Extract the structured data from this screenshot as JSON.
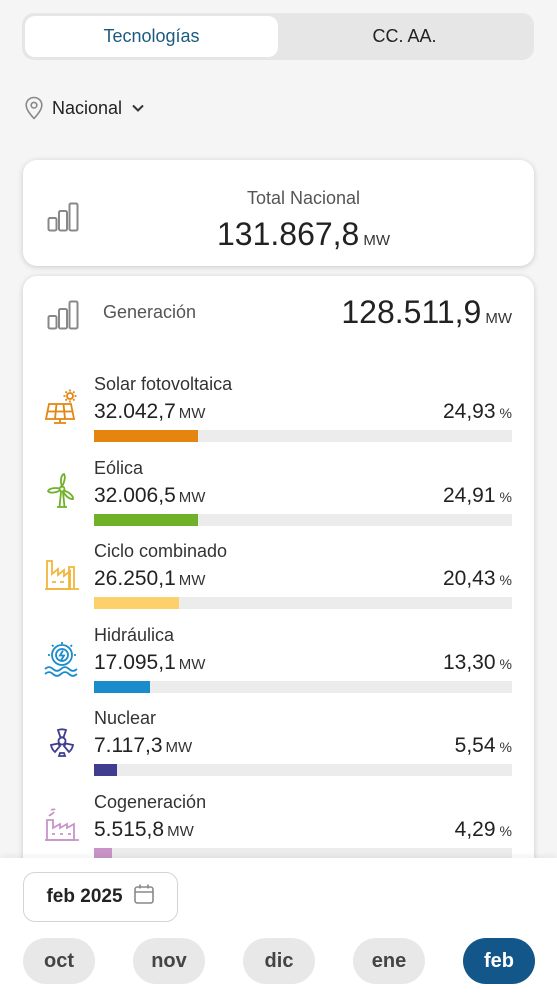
{
  "tabs": [
    {
      "label": "Tecnologías",
      "active": true
    },
    {
      "label": "CC. AA.",
      "active": false
    }
  ],
  "location": {
    "label": "Nacional",
    "icon": "location-pin-icon"
  },
  "total": {
    "label": "Total Nacional",
    "value": "131.867,8",
    "unit": "MW"
  },
  "generation": {
    "label": "Generación",
    "value": "128.511,9",
    "unit": "MW",
    "technologies": [
      {
        "name": "Solar fotovoltaica",
        "value": "32.042,7",
        "unit": "MW",
        "percent": "24,93",
        "pct_unit": "%",
        "share": 0.2493,
        "color": "#e5850f",
        "icon": "solar-panel-icon"
      },
      {
        "name": "Eólica",
        "value": "32.006,5",
        "unit": "MW",
        "percent": "24,91",
        "pct_unit": "%",
        "share": 0.2491,
        "color": "#70b12a",
        "icon": "wind-turbine-icon"
      },
      {
        "name": "Ciclo combinado",
        "value": "26.250,1",
        "unit": "MW",
        "percent": "20,43",
        "pct_unit": "%",
        "share": 0.2043,
        "color": "#fcd06a",
        "icon": "combined-cycle-plant-icon"
      },
      {
        "name": "Hidráulica",
        "value": "17.095,1",
        "unit": "MW",
        "percent": "13,30",
        "pct_unit": "%",
        "share": 0.133,
        "color": "#1a8ccb",
        "icon": "hydro-icon"
      },
      {
        "name": "Nuclear",
        "value": "7.117,3",
        "unit": "MW",
        "percent": "5,54",
        "pct_unit": "%",
        "share": 0.0554,
        "color": "#3e3d8f",
        "icon": "nuclear-icon"
      },
      {
        "name": "Cogeneración",
        "value": "5.515,8",
        "unit": "MW",
        "percent": "4,29",
        "pct_unit": "%",
        "share": 0.0429,
        "color": "#c894c8",
        "icon": "cogeneration-icon"
      }
    ]
  },
  "date_picker": {
    "label": "feb 2025",
    "icon": "calendar-icon"
  },
  "months": [
    {
      "label": "oct",
      "active": false
    },
    {
      "label": "nov",
      "active": false
    },
    {
      "label": "dic",
      "active": false
    },
    {
      "label": "ene",
      "active": false
    },
    {
      "label": "feb",
      "active": true
    }
  ]
}
